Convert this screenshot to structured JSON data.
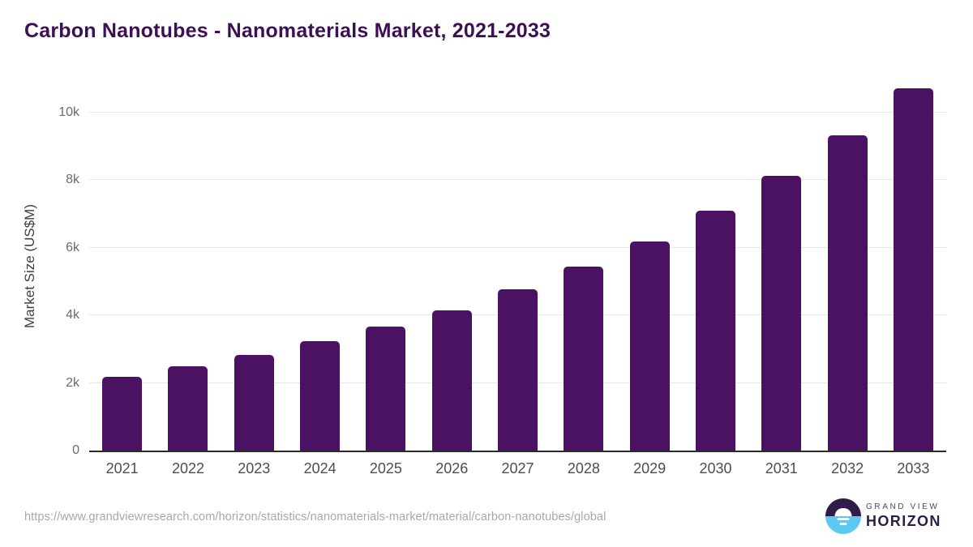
{
  "header": {
    "title": "Carbon Nanotubes - Nanomaterials Market, 2021-2033"
  },
  "chart_data": {
    "type": "bar",
    "title": "Carbon Nanotubes - Nanomaterials Market, 2021-2033",
    "xlabel": "",
    "ylabel": "Market Size (US$M)",
    "categories": [
      "2021",
      "2022",
      "2023",
      "2024",
      "2025",
      "2026",
      "2027",
      "2028",
      "2029",
      "2030",
      "2031",
      "2032",
      "2033"
    ],
    "values": [
      2190,
      2500,
      2830,
      3230,
      3660,
      4160,
      4770,
      5440,
      6190,
      7090,
      8120,
      9320,
      10720
    ],
    "ylim": [
      0,
      11000
    ],
    "ytick_values": [
      0,
      2000,
      4000,
      6000,
      8000,
      10000
    ],
    "ytick_labels": [
      "0",
      "2k",
      "4k",
      "6k",
      "8k",
      "10k"
    ],
    "grid": "horizontal",
    "legend": "none"
  },
  "colors": {
    "bar": "#4b1162",
    "title": "#3c1053",
    "gridline": "#e7e7e7",
    "axis_line": "#2a2a2a",
    "tick_label": "#6b6b6b",
    "x_label": "#4d4d4d",
    "url_text": "#a8a8a8",
    "logo_purple": "#2e1b47",
    "logo_blue": "#5ec8f2"
  },
  "footer": {
    "source_url": "https://www.grandviewresearch.com/horizon/statistics/nanomaterials-market/material/carbon-nanotubes/global",
    "logo": {
      "line1": "GRAND VIEW",
      "line2": "HORIZON"
    }
  }
}
